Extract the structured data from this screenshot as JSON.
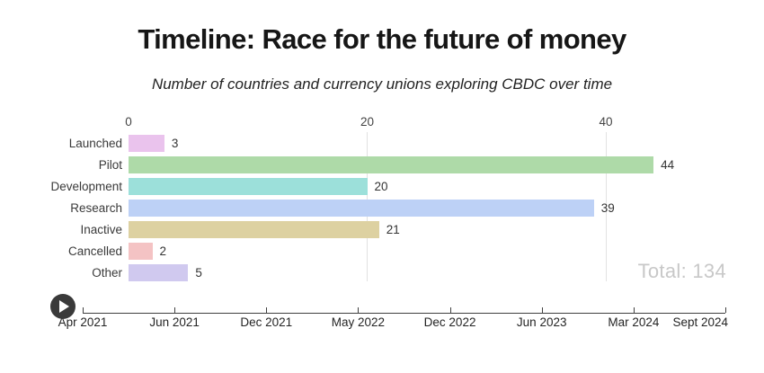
{
  "header": {
    "title": "Timeline: Race for the future of money",
    "subtitle": "Number of countries and currency unions exploring CBDC over time"
  },
  "chart_data": {
    "type": "bar",
    "orientation": "horizontal",
    "categories": [
      "Launched",
      "Pilot",
      "Development",
      "Research",
      "Inactive",
      "Cancelled",
      "Other"
    ],
    "values": [
      3,
      44,
      20,
      39,
      21,
      2,
      5
    ],
    "bar_colors": [
      "#eac3ed",
      "#aedaa8",
      "#9ce0da",
      "#bdd1f6",
      "#ddd1a1",
      "#f4c3c4",
      "#d0c9ef"
    ],
    "value_labels": [
      "3",
      "44",
      "20",
      "39",
      "21",
      "2",
      "5"
    ],
    "axis_ticks": [
      0,
      20,
      40
    ],
    "xlim": [
      0,
      50
    ],
    "grid": "vertical-light",
    "title": "Timeline: Race for the future of money",
    "subtitle": "Number of countries and currency unions exploring CBDC over time",
    "total_label": "Total: 134"
  },
  "timeline": {
    "labels": [
      "Apr 2021",
      "Jun 2021",
      "Dec 2021",
      "May 2022",
      "Dec 2022",
      "Jun 2023",
      "Mar 2024",
      "Sept 2024"
    ]
  },
  "controls": {
    "play_icon": "play-triangle"
  }
}
